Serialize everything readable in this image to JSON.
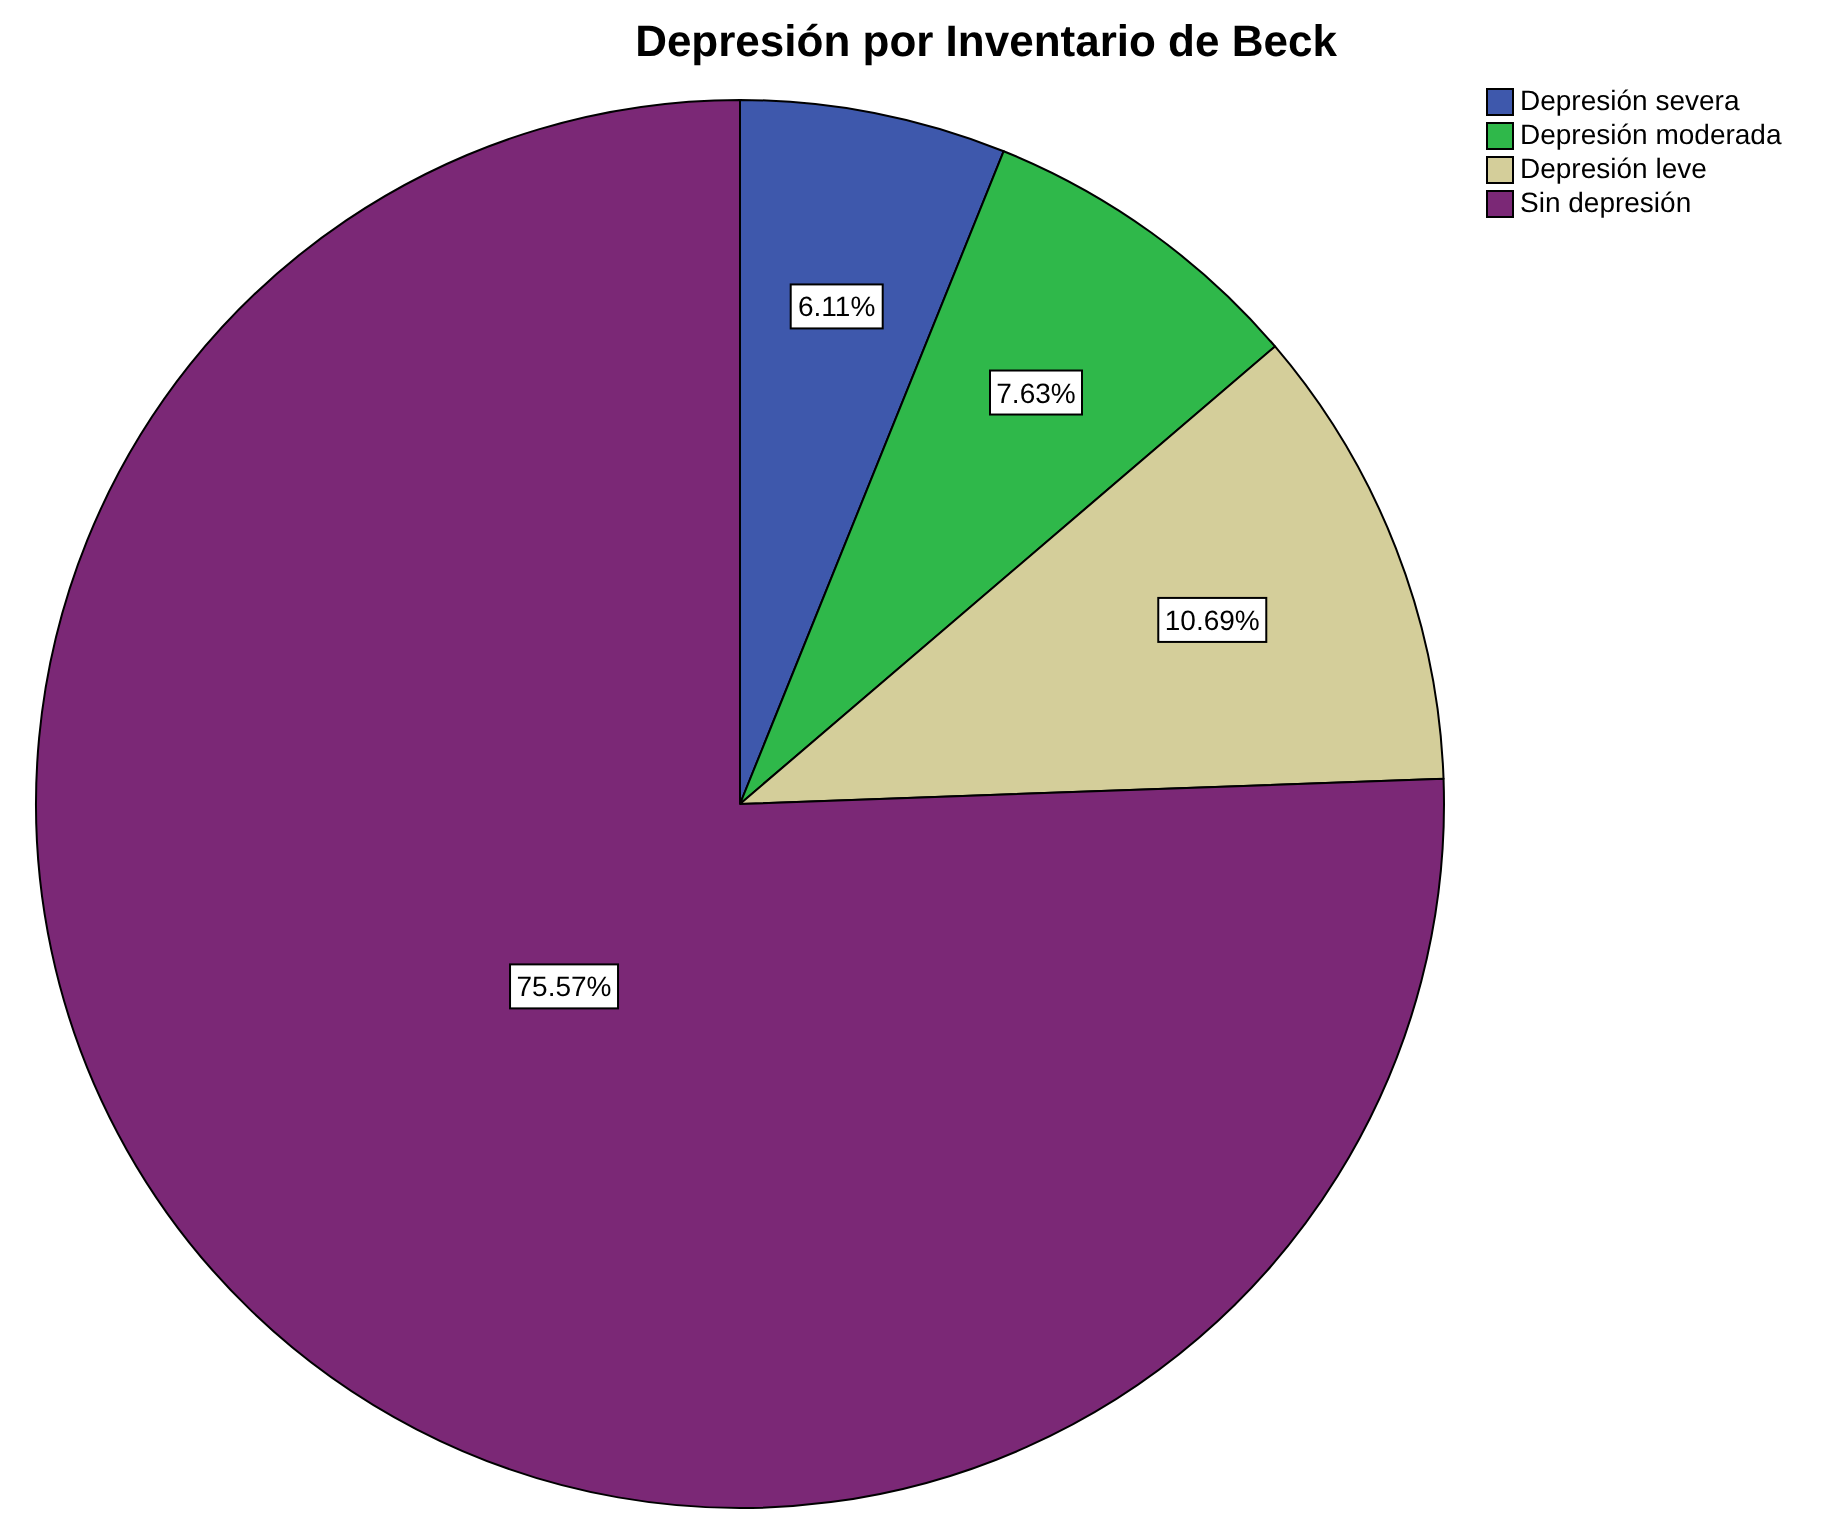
{
  "chart_data": {
    "type": "pie",
    "title": "Depresión por Inventario de Beck",
    "categories": [
      "Depresión severa",
      "Depresión moderada",
      "Depresión leve",
      "Sin depresión"
    ],
    "values": [
      6.11,
      7.63,
      10.69,
      75.57
    ],
    "colors": [
      "#3e58ac",
      "#2fb84a",
      "#d4ce9a",
      "#7b2876"
    ],
    "value_labels": [
      "6.11%",
      "7.63%",
      "10.69%",
      "75.57%"
    ],
    "legend": "top right"
  }
}
